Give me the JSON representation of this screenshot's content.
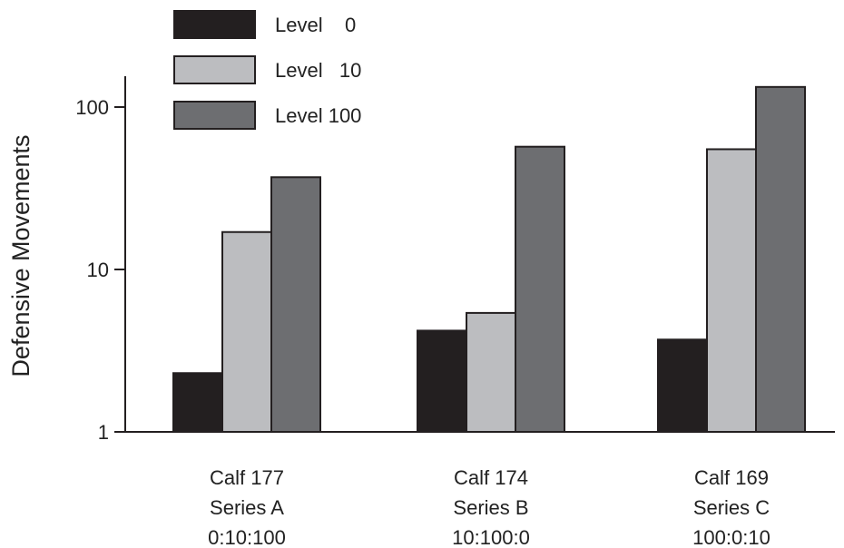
{
  "chart_data": {
    "type": "bar",
    "title": "",
    "xlabel": "",
    "ylabel": "Defensive Movements",
    "yscale": "log",
    "ylim": [
      1,
      150
    ],
    "yticks": [
      1,
      10,
      100
    ],
    "ytick_labels": [
      "1",
      "10",
      "100"
    ],
    "grid": false,
    "legend_position": "top-left",
    "categories": [
      [
        "Calf 177",
        "Series A",
        "0:10:100"
      ],
      [
        "Calf 174",
        "Series B",
        "10:100:0"
      ],
      [
        "Calf 169",
        "Series C",
        "100:0:10"
      ]
    ],
    "series": [
      {
        "name": "Level    0",
        "color": "#231f20",
        "values": [
          2.3,
          4.2,
          3.7
        ]
      },
      {
        "name": "Level   10",
        "color": "#bcbdc0",
        "values": [
          17,
          5.4,
          55
        ]
      },
      {
        "name": "Level 100",
        "color": "#6d6e71",
        "values": [
          37,
          57,
          133
        ]
      }
    ]
  }
}
